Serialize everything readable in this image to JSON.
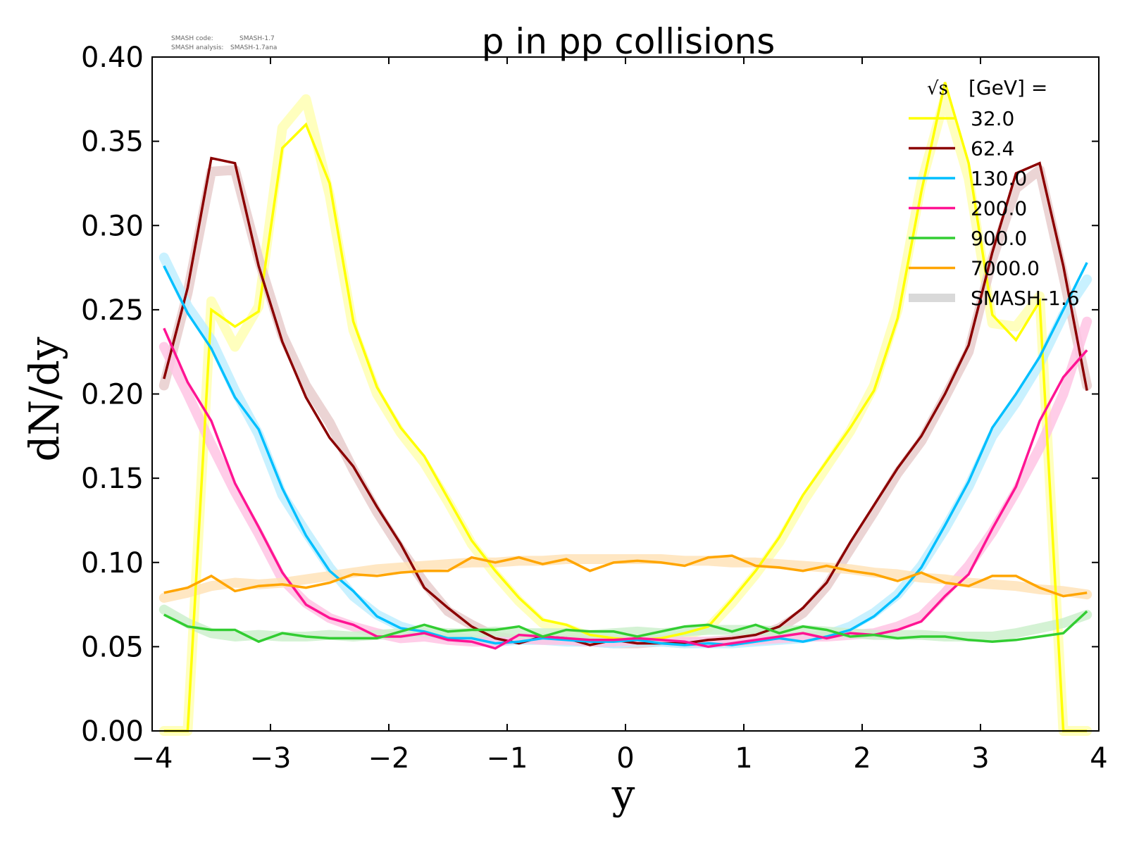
{
  "chart_data": {
    "type": "line",
    "title": "p in pp collisions",
    "xlabel": "y",
    "ylabel": "dN/dy",
    "xlim": [
      -4,
      4
    ],
    "ylim": [
      0,
      0.4
    ],
    "x_ticks": [
      -4,
      -3,
      -2,
      -1,
      0,
      1,
      2,
      3,
      4
    ],
    "x_tick_labels": [
      "−4",
      "−3",
      "−2",
      "−1",
      "0",
      "1",
      "2",
      "3",
      "4"
    ],
    "y_ticks": [
      0,
      0.05,
      0.1,
      0.15,
      0.2,
      0.25,
      0.3,
      0.35,
      0.4
    ],
    "y_tick_labels": [
      "0.00",
      "0.05",
      "0.10",
      "0.15",
      "0.20",
      "0.25",
      "0.30",
      "0.35",
      "0.40"
    ],
    "grid": false,
    "info": {
      "code_label": "SMASH code:",
      "code_value": "SMASH-1.7",
      "analysis_label": "SMASH analysis:",
      "analysis_value": "SMASH-1.7ana"
    },
    "legend": {
      "position": "top-right",
      "header_sqrt": "√s",
      "header_text": "[GeV] =",
      "reference_label": "SMASH-1.6",
      "reference_color": "#d9d9d9"
    },
    "x": [
      -3.9,
      -3.7,
      -3.5,
      -3.3,
      -3.1,
      -2.9,
      -2.7,
      -2.5,
      -2.3,
      -2.1,
      -1.9,
      -1.7,
      -1.5,
      -1.3,
      -1.1,
      -0.9,
      -0.7,
      -0.5,
      -0.3,
      -0.1,
      0.1,
      0.3,
      0.5,
      0.7,
      0.9,
      1.1,
      1.3,
      1.5,
      1.7,
      1.9,
      2.1,
      2.3,
      2.5,
      2.7,
      2.9,
      3.1,
      3.3,
      3.5,
      3.7,
      3.9
    ],
    "series": [
      {
        "name": "32.0",
        "color": "#ffff00",
        "band_color": "#ffffb3",
        "values": [
          0.0,
          0.0,
          0.25,
          0.24,
          0.249,
          0.346,
          0.36,
          0.325,
          0.243,
          0.204,
          0.18,
          0.163,
          0.138,
          0.113,
          0.095,
          0.079,
          0.066,
          0.063,
          0.057,
          0.055,
          0.054,
          0.055,
          0.058,
          0.062,
          0.078,
          0.095,
          0.115,
          0.14,
          0.16,
          0.18,
          0.202,
          0.245,
          0.32,
          0.385,
          0.337,
          0.247,
          0.232,
          0.255,
          0.0,
          0.0
        ],
        "reference": [
          0.0,
          0.0,
          0.255,
          0.228,
          0.252,
          0.358,
          0.375,
          0.318,
          0.238,
          0.2,
          0.177,
          0.159,
          0.136,
          0.111,
          0.093,
          0.077,
          0.064,
          0.061,
          0.056,
          0.054,
          0.053,
          0.054,
          0.057,
          0.061,
          0.076,
          0.093,
          0.112,
          0.136,
          0.157,
          0.178,
          0.205,
          0.25,
          0.325,
          0.376,
          0.328,
          0.242,
          0.24,
          0.258,
          0.0,
          0.0
        ]
      },
      {
        "name": "62.4",
        "color": "#8b0000",
        "band_color": "#e7cccc",
        "values": [
          0.209,
          0.263,
          0.34,
          0.337,
          0.276,
          0.231,
          0.198,
          0.174,
          0.157,
          0.133,
          0.111,
          0.085,
          0.073,
          0.062,
          0.055,
          0.052,
          0.056,
          0.055,
          0.051,
          0.054,
          0.052,
          0.052,
          0.052,
          0.054,
          0.055,
          0.057,
          0.062,
          0.073,
          0.088,
          0.112,
          0.134,
          0.156,
          0.175,
          0.2,
          0.229,
          0.284,
          0.331,
          0.337,
          0.276,
          0.202
        ],
        "reference": [
          0.205,
          0.26,
          0.332,
          0.333,
          0.28,
          0.235,
          0.205,
          0.183,
          0.155,
          0.13,
          0.108,
          0.088,
          0.071,
          0.063,
          0.056,
          0.054,
          0.055,
          0.054,
          0.053,
          0.052,
          0.052,
          0.053,
          0.052,
          0.053,
          0.054,
          0.056,
          0.061,
          0.07,
          0.086,
          0.108,
          0.13,
          0.153,
          0.172,
          0.198,
          0.225,
          0.28,
          0.322,
          0.333,
          0.27,
          0.205
        ]
      },
      {
        "name": "130.0",
        "color": "#00bfff",
        "band_color": "#bfeeff",
        "values": [
          0.276,
          0.248,
          0.227,
          0.198,
          0.179,
          0.144,
          0.116,
          0.095,
          0.083,
          0.068,
          0.061,
          0.059,
          0.055,
          0.055,
          0.052,
          0.053,
          0.055,
          0.054,
          0.053,
          0.053,
          0.054,
          0.052,
          0.051,
          0.052,
          0.051,
          0.053,
          0.055,
          0.053,
          0.056,
          0.06,
          0.068,
          0.08,
          0.097,
          0.122,
          0.148,
          0.18,
          0.2,
          0.222,
          0.25,
          0.278
        ],
        "reference": [
          0.281,
          0.252,
          0.232,
          0.202,
          0.176,
          0.14,
          0.118,
          0.097,
          0.08,
          0.069,
          0.062,
          0.058,
          0.056,
          0.054,
          0.053,
          0.054,
          0.054,
          0.053,
          0.053,
          0.052,
          0.053,
          0.053,
          0.052,
          0.052,
          0.052,
          0.053,
          0.054,
          0.055,
          0.057,
          0.062,
          0.07,
          0.081,
          0.098,
          0.12,
          0.145,
          0.175,
          0.195,
          0.218,
          0.247,
          0.268
        ]
      },
      {
        "name": "200.0",
        "color": "#ff1493",
        "band_color": "#ffc4e4",
        "values": [
          0.239,
          0.207,
          0.184,
          0.147,
          0.121,
          0.094,
          0.075,
          0.067,
          0.063,
          0.056,
          0.056,
          0.058,
          0.054,
          0.053,
          0.049,
          0.057,
          0.056,
          0.055,
          0.054,
          0.054,
          0.055,
          0.054,
          0.053,
          0.05,
          0.052,
          0.054,
          0.056,
          0.058,
          0.055,
          0.058,
          0.057,
          0.06,
          0.065,
          0.08,
          0.093,
          0.12,
          0.145,
          0.184,
          0.21,
          0.226
        ],
        "reference": [
          0.228,
          0.2,
          0.17,
          0.142,
          0.117,
          0.09,
          0.076,
          0.067,
          0.062,
          0.058,
          0.055,
          0.056,
          0.054,
          0.053,
          0.053,
          0.055,
          0.054,
          0.054,
          0.053,
          0.053,
          0.054,
          0.054,
          0.053,
          0.053,
          0.053,
          0.054,
          0.055,
          0.056,
          0.056,
          0.057,
          0.058,
          0.062,
          0.068,
          0.082,
          0.098,
          0.118,
          0.142,
          0.168,
          0.2,
          0.243
        ]
      },
      {
        "name": "900.0",
        "color": "#32cd32",
        "band_color": "#ccf0cc",
        "values": [
          0.069,
          0.062,
          0.06,
          0.06,
          0.053,
          0.058,
          0.056,
          0.055,
          0.055,
          0.055,
          0.059,
          0.063,
          0.059,
          0.06,
          0.06,
          0.062,
          0.056,
          0.06,
          0.059,
          0.059,
          0.056,
          0.059,
          0.062,
          0.063,
          0.059,
          0.063,
          0.058,
          0.062,
          0.06,
          0.056,
          0.057,
          0.055,
          0.056,
          0.056,
          0.054,
          0.053,
          0.054,
          0.056,
          0.058,
          0.071
        ],
        "reference": [
          0.072,
          0.064,
          0.058,
          0.056,
          0.057,
          0.056,
          0.056,
          0.057,
          0.056,
          0.057,
          0.058,
          0.059,
          0.058,
          0.058,
          0.059,
          0.058,
          0.058,
          0.058,
          0.057,
          0.058,
          0.059,
          0.058,
          0.059,
          0.06,
          0.06,
          0.06,
          0.059,
          0.06,
          0.059,
          0.058,
          0.057,
          0.057,
          0.057,
          0.056,
          0.056,
          0.056,
          0.058,
          0.061,
          0.064,
          0.069
        ]
      },
      {
        "name": "7000.0",
        "color": "#ffa500",
        "band_color": "#ffe3b8",
        "values": [
          0.082,
          0.085,
          0.092,
          0.083,
          0.086,
          0.087,
          0.085,
          0.088,
          0.093,
          0.092,
          0.094,
          0.095,
          0.095,
          0.103,
          0.1,
          0.103,
          0.099,
          0.102,
          0.095,
          0.1,
          0.101,
          0.1,
          0.098,
          0.103,
          0.104,
          0.098,
          0.097,
          0.095,
          0.098,
          0.095,
          0.093,
          0.089,
          0.094,
          0.088,
          0.086,
          0.092,
          0.092,
          0.085,
          0.08,
          0.082
        ],
        "reference": [
          0.079,
          0.082,
          0.086,
          0.088,
          0.087,
          0.088,
          0.09,
          0.092,
          0.094,
          0.096,
          0.097,
          0.098,
          0.099,
          0.1,
          0.1,
          0.101,
          0.101,
          0.102,
          0.102,
          0.102,
          0.102,
          0.102,
          0.101,
          0.101,
          0.1,
          0.1,
          0.099,
          0.098,
          0.097,
          0.096,
          0.094,
          0.093,
          0.091,
          0.09,
          0.088,
          0.087,
          0.086,
          0.084,
          0.083,
          0.081
        ]
      }
    ]
  }
}
